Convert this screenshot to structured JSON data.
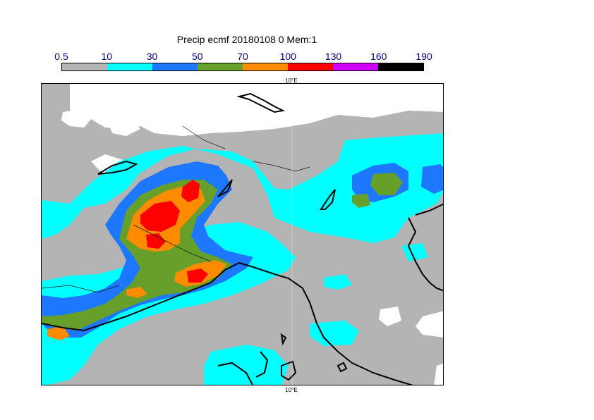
{
  "title": "Precip ecmf 20180108 0 Mem:1",
  "legend": {
    "ticks": [
      "0.5",
      "10",
      "30",
      "50",
      "70",
      "100",
      "130",
      "160",
      "190"
    ],
    "colors": [
      "#b4b4b4",
      "#00ffff",
      "#1e78ff",
      "#66a02a",
      "#ff8c00",
      "#ff0000",
      "#d200ff",
      "#000000"
    ]
  },
  "map": {
    "top_lon_label": "10°E",
    "bottom_lon_label": "10°E",
    "background_color": "#b4b4b4"
  }
}
